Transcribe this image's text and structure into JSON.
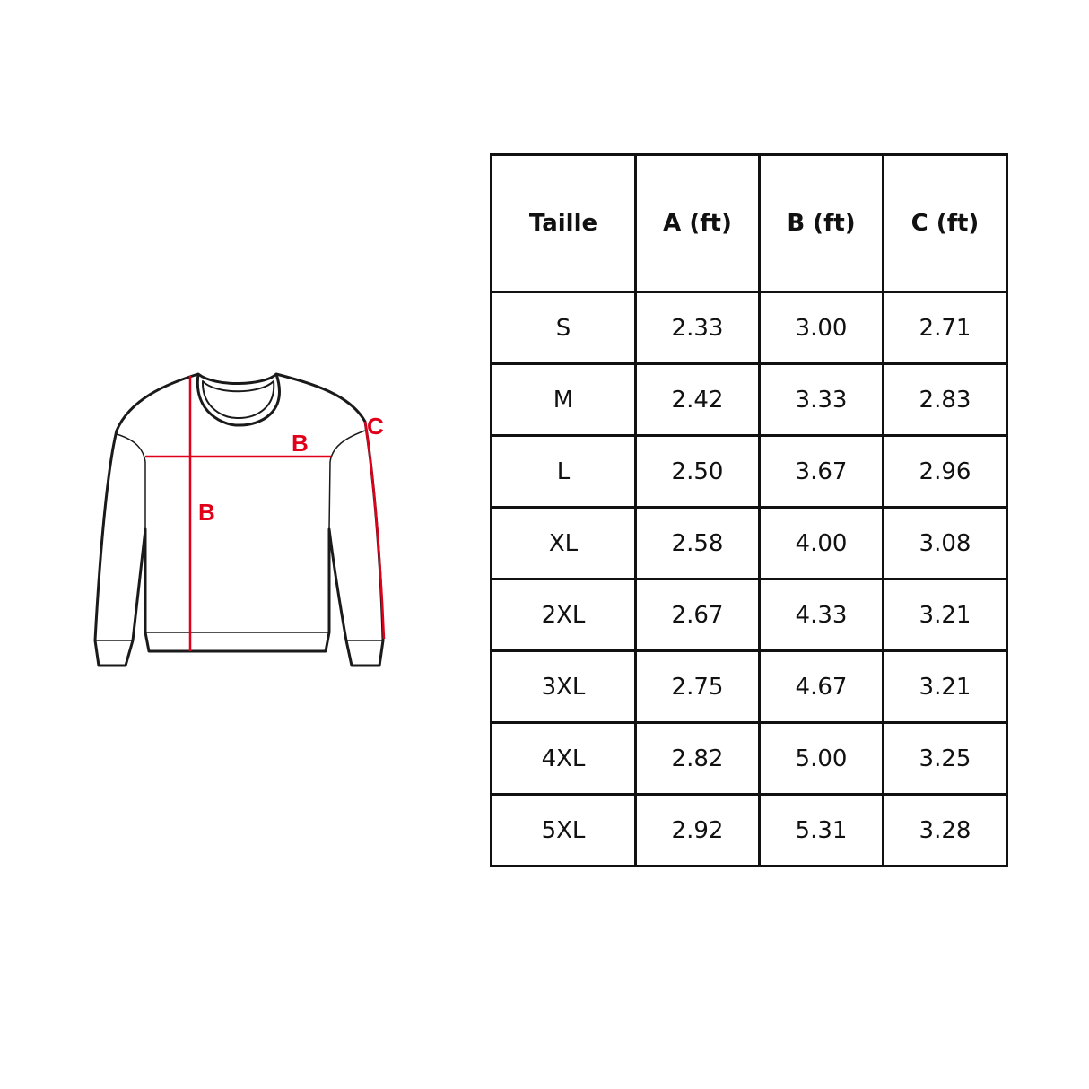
{
  "diagram": {
    "labels": {
      "width": "B",
      "length": "B",
      "sleeve": "C"
    },
    "measure_color": "#e0001a",
    "outline_color": "#1a1a1a"
  },
  "table": {
    "headers": [
      "Taille",
      "A (ft)",
      "B (ft)",
      "C (ft)"
    ],
    "rows": [
      [
        "S",
        "2.33",
        "3.00",
        "2.71"
      ],
      [
        "M",
        "2.42",
        "3.33",
        "2.83"
      ],
      [
        "L",
        "2.50",
        "3.67",
        "2.96"
      ],
      [
        "XL",
        "2.58",
        "4.00",
        "3.08"
      ],
      [
        "2XL",
        "2.67",
        "4.33",
        "3.21"
      ],
      [
        "3XL",
        "2.75",
        "4.67",
        "3.21"
      ],
      [
        "4XL",
        "2.82",
        "5.00",
        "3.25"
      ],
      [
        "5XL",
        "2.92",
        "5.31",
        "3.28"
      ]
    ]
  }
}
